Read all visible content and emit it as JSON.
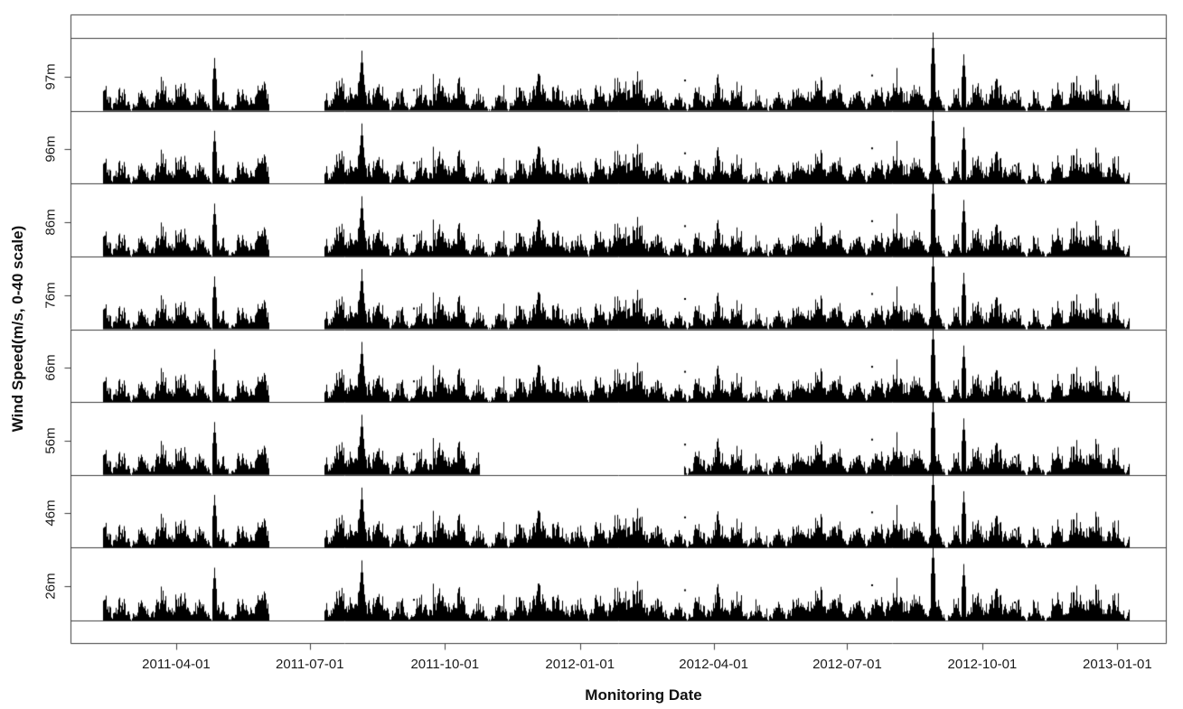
{
  "chart_data": {
    "type": "scatter",
    "title": "",
    "xlabel": "Monitoring Date",
    "ylabel": "Wind Speed(m/s, 0-40 scale)",
    "x_domain": [
      "2011-01-19",
      "2013-02-03"
    ],
    "x_ticks": [
      "2011-04-01",
      "2011-07-01",
      "2011-10-01",
      "2012-01-01",
      "2012-04-01",
      "2012-07-01",
      "2012-10-01",
      "2013-01-01"
    ],
    "band_scale_ms": 40,
    "typical_speed_range_ms": [
      0,
      20
    ],
    "panels": [
      {
        "label": "97m",
        "segments": [
          [
            "2011-02-10",
            "2011-06-03"
          ],
          [
            "2011-07-11",
            "2013-01-09"
          ]
        ]
      },
      {
        "label": "96m",
        "segments": [
          [
            "2011-02-10",
            "2011-06-03"
          ],
          [
            "2011-07-11",
            "2013-01-09"
          ]
        ]
      },
      {
        "label": "86m",
        "segments": [
          [
            "2011-02-10",
            "2011-06-03"
          ],
          [
            "2011-07-11",
            "2013-01-09"
          ]
        ]
      },
      {
        "label": "76m",
        "segments": [
          [
            "2011-02-10",
            "2011-06-03"
          ],
          [
            "2011-07-11",
            "2013-01-09"
          ]
        ]
      },
      {
        "label": "66m",
        "segments": [
          [
            "2011-02-10",
            "2011-06-03"
          ],
          [
            "2011-07-11",
            "2013-01-09"
          ]
        ]
      },
      {
        "label": "56m",
        "segments": [
          [
            "2011-02-10",
            "2011-06-03"
          ],
          [
            "2011-07-11",
            "2011-10-24"
          ],
          [
            "2012-03-12",
            "2013-01-09"
          ]
        ]
      },
      {
        "label": "46m",
        "segments": [
          [
            "2011-02-10",
            "2011-06-03"
          ],
          [
            "2011-07-11",
            "2013-01-09"
          ]
        ]
      },
      {
        "label": "26m",
        "segments": [
          [
            "2011-02-10",
            "2011-06-03"
          ],
          [
            "2011-07-11",
            "2013-01-09"
          ]
        ]
      }
    ],
    "spikes": [
      {
        "date": "2011-04-27",
        "speed_ms": 29
      },
      {
        "date": "2011-08-05",
        "speed_ms": 33
      },
      {
        "date": "2012-08-28",
        "speed_ms": 43
      },
      {
        "date": "2012-09-18",
        "speed_ms": 31
      }
    ],
    "layout_hints": {
      "legend": "none",
      "grid": "horizontal-band-dividers",
      "point_style": "dense vertical black strokes rising from each panel baseline"
    },
    "colors": {
      "point": "#000000",
      "axis_line": "#3f3f3f",
      "text": "#1a1a1a",
      "background": "#ffffff"
    }
  }
}
